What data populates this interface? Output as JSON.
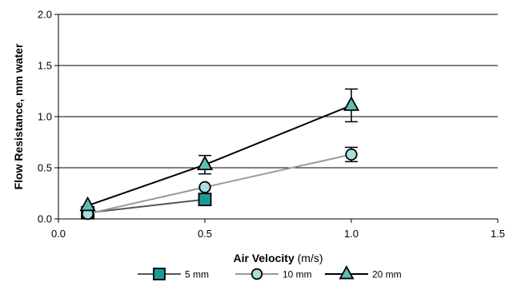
{
  "chart_data": {
    "type": "line",
    "xlabel_main": "Air Velocity",
    "xlabel_unit": " (m/s)",
    "ylabel": "Flow Resistance, mm water",
    "xlim": [
      0.0,
      1.5
    ],
    "ylim": [
      0.0,
      2.0
    ],
    "x_ticks": [
      "0.0",
      "0.5",
      "1.0",
      "1.5"
    ],
    "y_ticks": [
      "0.0",
      "0.5",
      "1.0",
      "1.5",
      "2.0"
    ],
    "grid": "horizontal",
    "legend_position": "bottom",
    "series": [
      {
        "name": "5 mm",
        "marker": "square",
        "line_color": "#555555",
        "marker_fill": "#1a9a9a",
        "points": [
          {
            "x": 0.1,
            "y": 0.06
          },
          {
            "x": 0.5,
            "y": 0.19
          }
        ]
      },
      {
        "name": "10 mm",
        "marker": "circle",
        "line_color": "#999999",
        "marker_fill": "#a8dede",
        "points": [
          {
            "x": 0.1,
            "y": 0.05
          },
          {
            "x": 0.5,
            "y": 0.31
          },
          {
            "x": 1.0,
            "y": 0.63,
            "err": 0.07
          }
        ]
      },
      {
        "name": "20 mm",
        "marker": "triangle",
        "line_color": "#000000",
        "marker_fill": "#5cc0b0",
        "points": [
          {
            "x": 0.1,
            "y": 0.13
          },
          {
            "x": 0.5,
            "y": 0.53,
            "err": 0.09
          },
          {
            "x": 1.0,
            "y": 1.11,
            "err": 0.16
          }
        ]
      }
    ]
  }
}
